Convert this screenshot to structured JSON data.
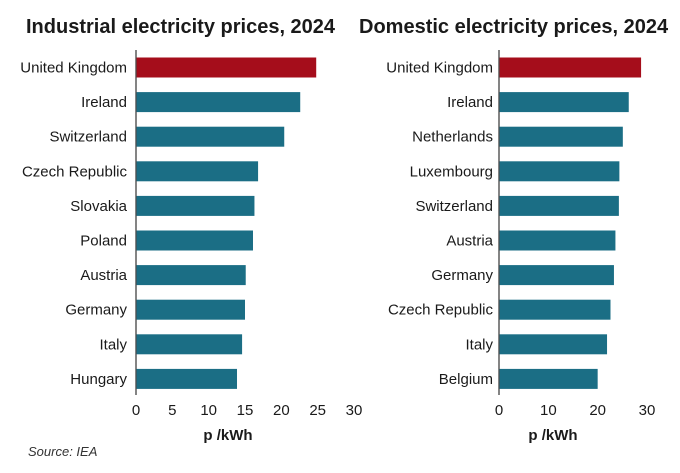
{
  "source": "Source: IEA",
  "colors": {
    "highlight": "#a50d1b",
    "bar": "#1b6e85",
    "axis": "#333333"
  },
  "chart_data": [
    {
      "type": "bar",
      "orientation": "horizontal",
      "title": "Industrial electricity prices, 2024",
      "xlabel": "p /kWh",
      "ylabel": "",
      "xlim": [
        0,
        30
      ],
      "xticks": [
        0,
        5,
        10,
        15,
        20,
        25,
        30
      ],
      "grid": false,
      "highlight_category": "United Kingdom",
      "categories": [
        "United Kingdom",
        "Ireland",
        "Switzerland",
        "Czech Republic",
        "Slovakia",
        "Poland",
        "Austria",
        "Germany",
        "Italy",
        "Hungary"
      ],
      "values": [
        24.8,
        22.6,
        20.4,
        16.8,
        16.3,
        16.1,
        15.1,
        15.0,
        14.6,
        13.9
      ]
    },
    {
      "type": "bar",
      "orientation": "horizontal",
      "title": "Domestic electricity prices, 2024",
      "xlabel": "p /kWh",
      "ylabel": "",
      "xlim": [
        0,
        30
      ],
      "xticks": [
        0,
        10,
        20,
        30
      ],
      "grid": false,
      "highlight_category": "United Kingdom",
      "categories": [
        "United Kingdom",
        "Ireland",
        "Netherlands",
        "Luxembourg",
        "Switzerland",
        "Austria",
        "Germany",
        "Czech Republic",
        "Italy",
        "Belgium"
      ],
      "values": [
        28.8,
        26.3,
        25.1,
        24.4,
        24.3,
        23.6,
        23.3,
        22.6,
        21.9,
        20.0
      ]
    }
  ]
}
